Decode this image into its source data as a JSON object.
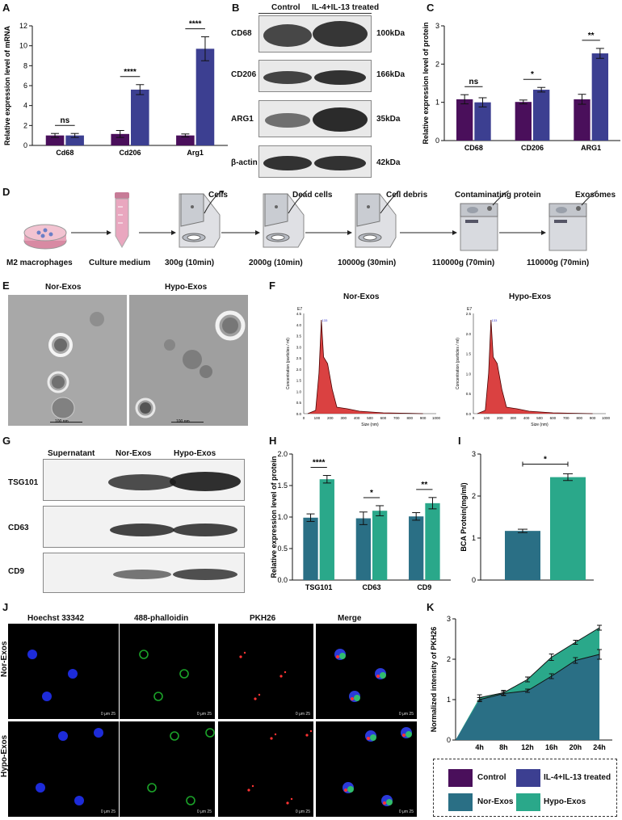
{
  "panels": {
    "A": "A",
    "B": "B",
    "C": "C",
    "D": "D",
    "E": "E",
    "F": "F",
    "G": "G",
    "H": "H",
    "I": "I",
    "J": "J",
    "K": "K"
  },
  "colors": {
    "control": "#4a0f5b",
    "il4": "#3c3f91",
    "norexos": "#2a6f85",
    "hypoexos": "#2aa88a"
  },
  "chart_data": [
    {
      "id": "A",
      "type": "bar",
      "ylabel": "Relative expression level of mRNA",
      "categories": [
        "Cd68",
        "Cd206",
        "Arg1"
      ],
      "ylim": [
        0,
        12
      ],
      "yticks": [
        "0",
        "2",
        "4",
        "6",
        "8",
        "10",
        "12"
      ],
      "series": [
        {
          "name": "Control",
          "values": [
            1.0,
            1.15,
            1.0
          ],
          "errors": [
            0.2,
            0.35,
            0.15
          ]
        },
        {
          "name": "IL-4+IL-13 treated",
          "values": [
            1.0,
            5.6,
            9.7
          ],
          "errors": [
            0.2,
            0.5,
            1.2
          ]
        }
      ],
      "significance": [
        "ns",
        "****",
        "****"
      ]
    },
    {
      "id": "C",
      "type": "bar",
      "ylabel": "Relative expression level of protein",
      "categories": [
        "CD68",
        "CD206",
        "ARG1"
      ],
      "ylim": [
        0,
        3
      ],
      "yticks": [
        "0",
        "1",
        "2",
        "3"
      ],
      "series": [
        {
          "name": "Control",
          "values": [
            1.08,
            1.01,
            1.08
          ],
          "errors": [
            0.12,
            0.05,
            0.13
          ]
        },
        {
          "name": "IL-4+IL-13 treated",
          "values": [
            1.0,
            1.33,
            2.28
          ],
          "errors": [
            0.12,
            0.06,
            0.13
          ]
        }
      ],
      "significance": [
        "ns",
        "*",
        "**"
      ]
    },
    {
      "id": "H",
      "type": "bar",
      "ylabel": "Relative expression level of protein",
      "categories": [
        "TSG101",
        "CD63",
        "CD9"
      ],
      "ylim": [
        0,
        2.0
      ],
      "yticks": [
        "0.0",
        "0.5",
        "1.0",
        "1.5",
        "2.0"
      ],
      "series": [
        {
          "name": "Nor-Exos",
          "values": [
            0.99,
            0.98,
            1.01
          ],
          "errors": [
            0.06,
            0.1,
            0.06
          ]
        },
        {
          "name": "Hypo-Exos",
          "values": [
            1.6,
            1.1,
            1.22
          ],
          "errors": [
            0.06,
            0.08,
            0.09
          ]
        }
      ],
      "significance": [
        "****",
        "*",
        "**"
      ]
    },
    {
      "id": "I",
      "type": "bar",
      "ylabel": "BCA Protein(mg/ml)",
      "categories": [
        "Nor-Exos",
        "Hypo-Exos"
      ],
      "ylim": [
        0,
        3
      ],
      "yticks": [
        "0",
        "1",
        "2",
        "3"
      ],
      "values": [
        1.17,
        2.45
      ],
      "errors": [
        0.04,
        0.08
      ],
      "significance": "*"
    },
    {
      "id": "K",
      "type": "area",
      "ylabel": "Normalized intensity of PKH26",
      "x": [
        "4h",
        "8h",
        "12h",
        "16h",
        "20h",
        "24h"
      ],
      "ylim": [
        0,
        3
      ],
      "yticks": [
        "0",
        "1",
        "2",
        "3"
      ],
      "series": [
        {
          "name": "Nor-Exos",
          "values": [
            1.0,
            1.15,
            1.22,
            1.58,
            1.97,
            2.12
          ],
          "errors": [
            0.05,
            0.05,
            0.04,
            0.06,
            0.07,
            0.12
          ]
        },
        {
          "name": "Hypo-Exos",
          "values": [
            1.05,
            1.17,
            1.5,
            2.05,
            2.42,
            2.78
          ],
          "errors": [
            0.07,
            0.06,
            0.06,
            0.08,
            0.05,
            0.06
          ]
        }
      ]
    }
  ],
  "panelB": {
    "headers": [
      "Control",
      "IL-4+IL-13 treated"
    ],
    "rows": [
      {
        "name": "CD68",
        "size": "100kDa"
      },
      {
        "name": "CD206",
        "size": "166kDa"
      },
      {
        "name": "ARG1",
        "size": "35kDa"
      },
      {
        "name": "β-actin",
        "size": "42kDa"
      }
    ]
  },
  "panelD": {
    "top": [
      "Cells",
      "Dead cells",
      "Cell debris",
      "Contaminating protein",
      "Exosomes"
    ],
    "bottom": [
      "M2 macrophages",
      "Culture medium",
      "300g (10min)",
      "2000g (10min)",
      "10000g (30min)",
      "110000g (70min)",
      "110000g (70min)"
    ]
  },
  "panelE": {
    "titles": [
      "Nor-Exos",
      "Hypo-Exos"
    ],
    "scale": "100 nm"
  },
  "panelF": {
    "titles": [
      "Nor-Exos",
      "Hypo-Exos"
    ],
    "ylabel": "Concentration (particles / ml)",
    "xlabel": "Size (nm)",
    "exp": "E7",
    "xticks": [
      "0",
      "100",
      "200",
      "300",
      "400",
      "500",
      "600",
      "700",
      "800",
      "900",
      "1000"
    ],
    "yticks": [
      "0.0",
      "0.5",
      "1.0",
      "1.5",
      "2.0",
      "2.5",
      "3.0",
      "3.5",
      "4.0",
      "4.5"
    ],
    "yticks2": [
      "0.0",
      "0.5",
      "1.0",
      "1.5",
      "2.0",
      "2.5"
    ],
    "peak1": "133",
    "peak2": "133"
  },
  "panelG": {
    "headers": [
      "Supernatant",
      "Nor-Exos",
      "Hypo-Exos"
    ],
    "rows": [
      "TSG101",
      "CD63",
      "CD9"
    ]
  },
  "panelJ": {
    "headers": [
      "Hoechst 33342",
      "488-phalloidin",
      "PKH26",
      "Merge"
    ],
    "rows": [
      "Nor-Exos",
      "Hypo-Exos"
    ],
    "scale": "0 μm 25"
  },
  "legend": [
    "Control",
    "IL-4+IL-13 treated",
    "Nor-Exos",
    "Hypo-Exos"
  ]
}
